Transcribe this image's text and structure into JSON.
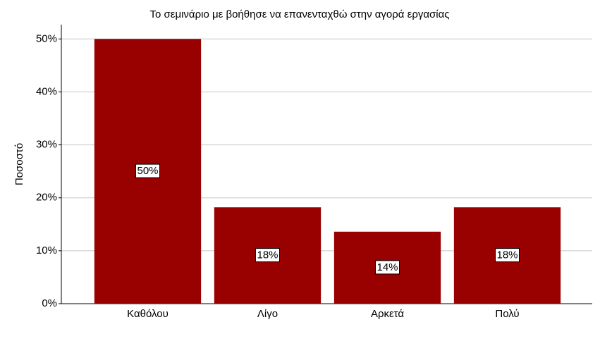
{
  "chart_data": {
    "type": "bar",
    "title": "Το σεμινάριο με βοήθησε να επανενταχθώ στην αγορά εργασίας",
    "ylabel": "Ποσοστό",
    "categories": [
      "Καθόλου",
      "Λίγο",
      "Αρκετά",
      "Πολύ"
    ],
    "values": [
      50,
      18.2,
      13.6,
      18.2
    ],
    "value_labels": [
      "50%",
      "18%",
      "14%",
      "18%"
    ],
    "color": "#990000",
    "ylim": [
      0,
      52.7
    ],
    "yticks": [
      {
        "value": 0,
        "label": "0%"
      },
      {
        "value": 10,
        "label": "10%"
      },
      {
        "value": 20,
        "label": "20%"
      },
      {
        "value": 30,
        "label": "30%"
      },
      {
        "value": 40,
        "label": "40%"
      },
      {
        "value": 50,
        "label": "50%"
      }
    ],
    "grid": true
  }
}
